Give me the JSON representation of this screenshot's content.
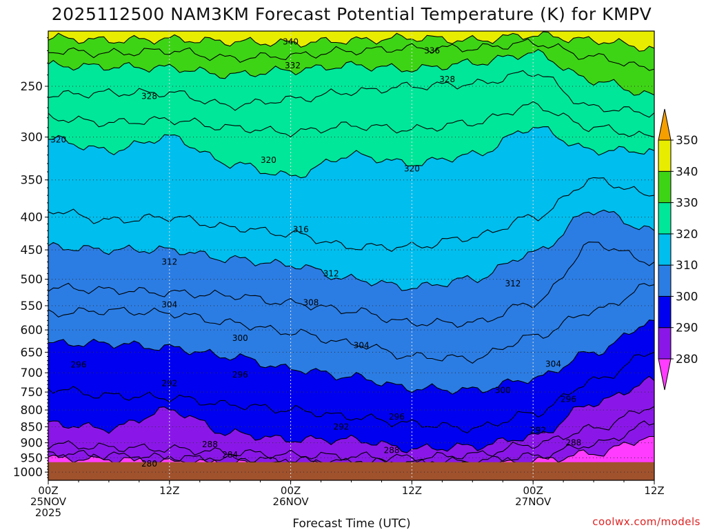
{
  "chart_data": {
    "type": "heatmap",
    "title": "2025112500 NAM3KM Forecast Potential Temperature (K) for KMPV",
    "xlabel": "Forecast Time (UTC)",
    "credit": "coolwx.com/models",
    "y_axis": {
      "scale": "log",
      "inverted": true,
      "range": [
        205,
        1030
      ],
      "ticks": [
        250,
        300,
        350,
        400,
        450,
        500,
        550,
        600,
        650,
        700,
        750,
        800,
        850,
        900,
        950,
        1000
      ],
      "gridlines": true
    },
    "x_axis": {
      "range_hours": [
        0,
        60
      ],
      "ticks": [
        {
          "hour": 0,
          "line1": "00Z",
          "line2": "25NOV",
          "line3": "2025"
        },
        {
          "hour": 12,
          "line1": "12Z",
          "line2": "",
          "line3": ""
        },
        {
          "hour": 24,
          "line1": "00Z",
          "line2": "26NOV",
          "line3": ""
        },
        {
          "hour": 36,
          "line1": "12Z",
          "line2": "",
          "line3": ""
        },
        {
          "hour": 48,
          "line1": "00Z",
          "line2": "27NOV",
          "line3": ""
        },
        {
          "hour": 60,
          "line1": "12Z",
          "line2": "",
          "line3": ""
        }
      ],
      "gridlines": true
    },
    "hours": [
      0,
      6,
      12,
      18,
      24,
      30,
      36,
      42,
      48,
      54,
      60
    ],
    "isentropes": [
      {
        "theta": 280,
        "p": [
          950,
          955,
          960,
          965,
          970,
          975,
          980,
          975,
          960,
          935,
          880
        ]
      },
      {
        "theta": 284,
        "p": [
          935,
          942,
          950,
          955,
          960,
          965,
          968,
          962,
          945,
          905,
          840
        ]
      },
      {
        "theta": 288,
        "p": [
          905,
          915,
          920,
          932,
          940,
          945,
          950,
          940,
          905,
          855,
          790
        ]
      },
      {
        "theta": 292,
        "p": [
          840,
          855,
          800,
          870,
          890,
          890,
          920,
          912,
          880,
          780,
          720
        ]
      },
      {
        "theta": 296,
        "p": [
          740,
          760,
          765,
          785,
          800,
          820,
          840,
          855,
          810,
          720,
          650
        ]
      },
      {
        "theta": 300,
        "p": [
          630,
          630,
          640,
          660,
          690,
          710,
          740,
          745,
          715,
          650,
          580
        ]
      },
      {
        "theta": 304,
        "p": [
          565,
          560,
          565,
          585,
          605,
          630,
          660,
          665,
          615,
          560,
          510
        ]
      },
      {
        "theta": 308,
        "p": [
          515,
          520,
          525,
          530,
          545,
          560,
          585,
          585,
          545,
          440,
          470
        ]
      },
      {
        "theta": 312,
        "p": [
          445,
          450,
          450,
          465,
          475,
          500,
          515,
          500,
          455,
          390,
          420
        ]
      },
      {
        "theta": 316,
        "p": [
          390,
          405,
          400,
          415,
          425,
          445,
          445,
          430,
          400,
          350,
          370
        ]
      },
      {
        "theta": 320,
        "p": [
          302,
          315,
          300,
          330,
          345,
          320,
          330,
          320,
          290,
          315,
          315
        ]
      },
      {
        "theta": 324,
        "p": [
          280,
          285,
          282,
          290,
          295,
          288,
          292,
          285,
          268,
          290,
          300
        ]
      },
      {
        "theta": 328,
        "p": [
          258,
          256,
          256,
          268,
          262,
          255,
          250,
          248,
          238,
          270,
          275
        ]
      },
      {
        "theta": 332,
        "p": [
          232,
          233,
          234,
          240,
          236,
          232,
          235,
          230,
          222,
          245,
          258
        ]
      },
      {
        "theta": 336,
        "p": [
          220,
          222,
          220,
          226,
          224,
          220,
          218,
          218,
          214,
          225,
          235
        ]
      },
      {
        "theta": 340,
        "p": [
          210,
          212,
          211,
          213,
          214,
          212,
          210,
          212,
          208,
          212,
          218
        ]
      }
    ],
    "contour_labels": [
      {
        "text": "340",
        "hour": 24.0,
        "p": 213
      },
      {
        "text": "336",
        "hour": 38.0,
        "p": 220
      },
      {
        "text": "332",
        "hour": 24.2,
        "p": 232
      },
      {
        "text": "328",
        "hour": 10.0,
        "p": 259
      },
      {
        "text": "328",
        "hour": 39.5,
        "p": 244
      },
      {
        "text": "320",
        "hour": 1.0,
        "p": 303
      },
      {
        "text": "320",
        "hour": 21.8,
        "p": 326
      },
      {
        "text": "320",
        "hour": 36.0,
        "p": 336
      },
      {
        "text": "316",
        "hour": 25.0,
        "p": 418
      },
      {
        "text": "312",
        "hour": 12.0,
        "p": 470
      },
      {
        "text": "312",
        "hour": 28.0,
        "p": 490
      },
      {
        "text": "312",
        "hour": 46.0,
        "p": 508
      },
      {
        "text": "308",
        "hour": 26.0,
        "p": 544
      },
      {
        "text": "304",
        "hour": 12.0,
        "p": 548
      },
      {
        "text": "304",
        "hour": 31.0,
        "p": 634
      },
      {
        "text": "304",
        "hour": 50.0,
        "p": 678
      },
      {
        "text": "300",
        "hour": 19.0,
        "p": 618
      },
      {
        "text": "300",
        "hour": 45.0,
        "p": 745
      },
      {
        "text": "296",
        "hour": 3.0,
        "p": 680
      },
      {
        "text": "296",
        "hour": 19.0,
        "p": 705
      },
      {
        "text": "296",
        "hour": 34.5,
        "p": 820
      },
      {
        "text": "296",
        "hour": 51.5,
        "p": 770
      },
      {
        "text": "292",
        "hour": 12.0,
        "p": 727
      },
      {
        "text": "292",
        "hour": 29.0,
        "p": 850
      },
      {
        "text": "292",
        "hour": 48.5,
        "p": 860
      },
      {
        "text": "288",
        "hour": 16.0,
        "p": 905
      },
      {
        "text": "288",
        "hour": 34.0,
        "p": 925
      },
      {
        "text": "288",
        "hour": 52.0,
        "p": 900
      },
      {
        "text": "284",
        "hour": 18.0,
        "p": 940
      },
      {
        "text": "280",
        "hour": 10.0,
        "p": 970
      }
    ],
    "terrain": {
      "surface_p": 965,
      "color": "#a0522d"
    },
    "colorbar": {
      "labels": [
        "280",
        "290",
        "300",
        "310",
        "320",
        "330",
        "340",
        "350"
      ],
      "bins": [
        {
          "from": 270,
          "to": 280,
          "color": "#ff3cff"
        },
        {
          "from": 280,
          "to": 290,
          "color": "#8a17e8"
        },
        {
          "from": 290,
          "to": 300,
          "color": "#0000f0"
        },
        {
          "from": 300,
          "to": 310,
          "color": "#2b7de4"
        },
        {
          "from": 310,
          "to": 320,
          "color": "#00beee"
        },
        {
          "from": 320,
          "to": 330,
          "color": "#00e79a"
        },
        {
          "from": 330,
          "to": 340,
          "color": "#3ed416"
        },
        {
          "from": 340,
          "to": 350,
          "color": "#e8ed00"
        },
        {
          "from": 350,
          "to": 360,
          "color": "#f5a000"
        }
      ]
    }
  }
}
